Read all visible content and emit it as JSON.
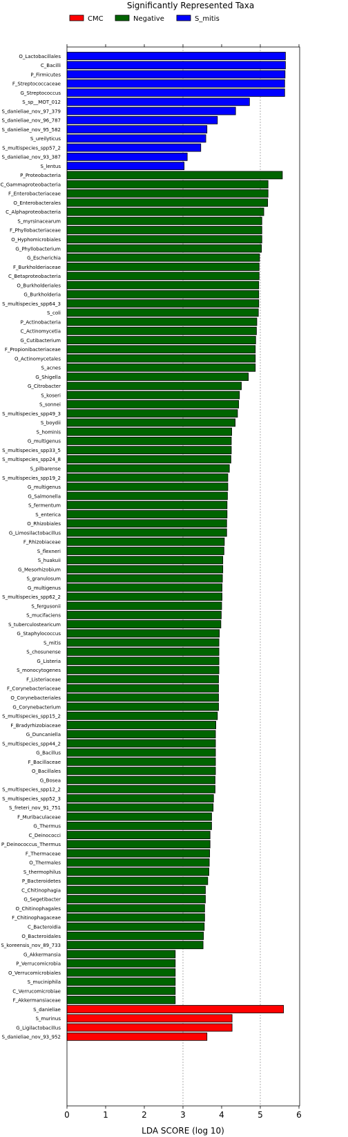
{
  "chart_data": {
    "type": "bar",
    "orientation": "horizontal",
    "title": "Significantly Represented Taxa",
    "xlabel": "LDA SCORE (log 10)",
    "ylabel": "",
    "xlim": [
      0,
      6
    ],
    "xticks": [
      "0",
      "1",
      "2",
      "3",
      "4",
      "5",
      "6"
    ],
    "grid": "vertical dashed at 3 and 5",
    "legend_position": "top",
    "legend": [
      {
        "name": "CMC",
        "color": "#ff0000"
      },
      {
        "name": "Negative",
        "color": "#006400"
      },
      {
        "name": "S_mitis",
        "color": "#0000ff"
      }
    ],
    "series": [
      {
        "name": "S_mitis",
        "color": "#0000ff",
        "categories": [
          "O_Lactobacillales",
          "C_Bacilli",
          "P_Firmicutes",
          "F_Streptococcaceae",
          "G_Streptococcus",
          "S_sp__MOT_012",
          "S_danieliae_nov_97_379",
          "S_danieliae_nov_96_787",
          "S_danieliae_nov_95_582",
          "S_ureilyticus",
          "S_multispecies_spp57_2",
          "S_danieliae_nov_93_387",
          "S_lentus"
        ],
        "values": [
          5.65,
          5.65,
          5.64,
          5.63,
          5.63,
          4.72,
          4.36,
          3.89,
          3.62,
          3.59,
          3.46,
          3.11,
          3.03
        ]
      },
      {
        "name": "Negative",
        "color": "#006400",
        "categories": [
          "P_Proteobacteria",
          "C_Gammaproteobacteria",
          "F_Enterobacteriaceae",
          "O_Enterobacterales",
          "C_Alphaproteobacteria",
          "S_myrsinacearum",
          "F_Phyllobacteriaceae",
          "O_Hyphomicrobiales",
          "G_Phyllobacterium",
          "G_Escherichia",
          "F_Burkholderiaceae",
          "C_Betaproteobacteria",
          "O_Burkholderiales",
          "G_Burkholderia",
          "S_multispecies_spp64_3",
          "S_coli",
          "P_Actinobacteria",
          "C_Actinomycetia",
          "G_Cutibacterium",
          "F_Propionibacteriaceae",
          "O_Actinomycetales",
          "S_acnes",
          "G_Shigella",
          "G_Citrobacter",
          "S_koseri",
          "S_sonnei",
          "S_multispecies_spp49_3",
          "S_boydii",
          "S_hominis",
          "G_multigenus",
          "S_multispecies_spp33_5",
          "S_multispecies_spp24_8",
          "S_pilbarense",
          "S_multispecies_spp19_2",
          "G_multigenus",
          "G_Salmonella",
          "S_fermentum",
          "S_enterica",
          "O_Rhizobiales",
          "G_Limosilactobacillus",
          "F_Rhizobiaceae",
          "S_flexneri",
          "S_huakuii",
          "G_Mesorhizobium",
          "S_granulosum",
          "G_multigenus",
          "S_multispecies_spp62_2",
          "S_fergusonii",
          "S_mucifaciens",
          "S_tuberculostearicum",
          "G_Staphylococcus",
          "S_mitis",
          "S_chosunense",
          "G_Listeria",
          "S_monocytogenes",
          "F_Listeriaceae",
          "F_Corynebacteriaceae",
          "O_Corynebacteriales",
          "G_Corynebacterium",
          "S_multispecies_spp15_2",
          "F_Bradyrhizobiaceae",
          "G_Duncaniella",
          "S_multispecies_spp44_2",
          "G_Bacillus",
          "F_Bacillaceae",
          "O_Bacillales",
          "G_Bosea",
          "S_multispecies_spp12_2",
          "S_multispecies_spp52_3",
          "S_freteri_nov_91_751",
          "F_Muribaculaceae",
          "G_Thermus",
          "C_Deinococci",
          "P_Deinococcus_Thermus",
          "F_Thermaceae",
          "O_Thermales",
          "S_thermophilus",
          "P_Bacteroidetes",
          "C_Chitinophagia",
          "G_Segetibacter",
          "O_Chitinophagales",
          "F_Chitinophagaceae",
          "C_Bacteroidia",
          "O_Bacteroidales",
          "S_koreensis_nov_89_733",
          "G_Akkermansia",
          "P_Verrucomicrobia",
          "O_Verrucomicrobiales",
          "S_muciniphila",
          "C_Verrucomicrobiae",
          "F_Akkermansiaceae"
        ],
        "values": [
          5.57,
          5.2,
          5.2,
          5.19,
          5.09,
          5.04,
          5.04,
          5.04,
          5.03,
          4.98,
          4.97,
          4.97,
          4.96,
          4.96,
          4.96,
          4.95,
          4.91,
          4.9,
          4.88,
          4.87,
          4.87,
          4.87,
          4.69,
          4.51,
          4.46,
          4.44,
          4.41,
          4.35,
          4.26,
          4.25,
          4.25,
          4.24,
          4.2,
          4.16,
          4.16,
          4.15,
          4.14,
          4.14,
          4.13,
          4.13,
          4.07,
          4.06,
          4.03,
          4.03,
          4.02,
          4.01,
          4.01,
          4.0,
          3.99,
          3.98,
          3.94,
          3.93,
          3.93,
          3.93,
          3.93,
          3.92,
          3.92,
          3.92,
          3.92,
          3.89,
          3.85,
          3.84,
          3.84,
          3.84,
          3.84,
          3.84,
          3.83,
          3.83,
          3.79,
          3.78,
          3.74,
          3.74,
          3.7,
          3.7,
          3.69,
          3.68,
          3.67,
          3.64,
          3.58,
          3.58,
          3.56,
          3.56,
          3.55,
          3.53,
          3.52,
          2.8,
          2.8,
          2.8,
          2.8,
          2.8,
          2.8
        ]
      },
      {
        "name": "CMC",
        "color": "#ff0000",
        "categories": [
          "S_danieliae",
          "S_murinus",
          "G_Ligilactobacillus",
          "S_danieliae_nov_93_952"
        ],
        "values": [
          5.6,
          4.27,
          4.27,
          3.62
        ]
      }
    ]
  }
}
